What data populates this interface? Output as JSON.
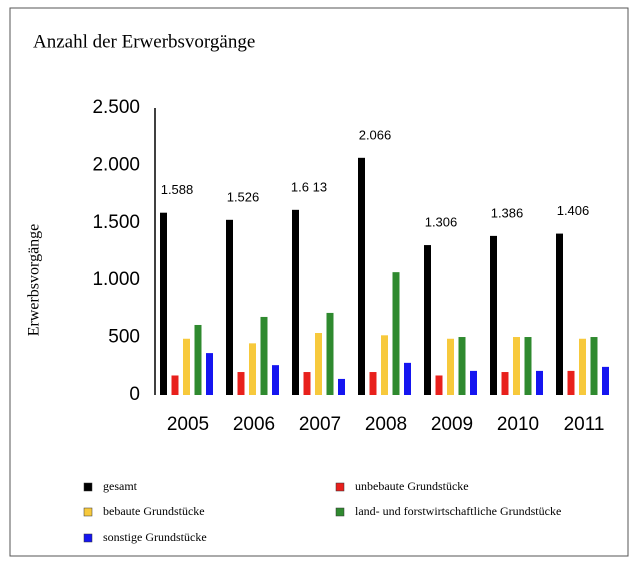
{
  "chart_data": {
    "type": "bar",
    "title": "Anzahl der Erwerbsvorgänge",
    "y_label": "Erwerbsvorgänge",
    "categories": [
      "2005",
      "2006",
      "2007",
      "2008",
      "2009",
      "2010",
      "2011"
    ],
    "series": [
      {
        "name": "gesamt",
        "color": "#000000",
        "values": [
          1588,
          1526,
          1613,
          2066,
          1306,
          1386,
          1406
        ],
        "value_labels": [
          "1.588",
          "1.526",
          "1.6 13",
          "2.066",
          "1.306",
          "1.386",
          "1.406"
        ]
      },
      {
        "name": "unbebaute Grundstücke",
        "color": "#e8201c",
        "values": [
          170,
          200,
          200,
          200,
          170,
          200,
          210
        ]
      },
      {
        "name": "bebaute Grundstücke",
        "color": "#f7c93c",
        "values": [
          490,
          450,
          540,
          520,
          490,
          505,
          490
        ]
      },
      {
        "name": "land- und forstwirtschaftliche Grundstücke",
        "color": "#2f8a2f",
        "values": [
          610,
          680,
          715,
          1070,
          505,
          505,
          505
        ]
      },
      {
        "name": "sonstige Grundstücke",
        "color": "#1515f0",
        "values": [
          365,
          260,
          140,
          280,
          210,
          210,
          245
        ]
      }
    ],
    "ylim": [
      0,
      2500
    ],
    "yticks": [
      0,
      500,
      {
        "value": 1000,
        "label": "1.000"
      },
      {
        "value": 1500,
        "label": "1.500"
      },
      {
        "value": 2000,
        "label": "2.000"
      },
      {
        "value": 2500,
        "label": "2.500"
      }
    ],
    "grid": false
  }
}
